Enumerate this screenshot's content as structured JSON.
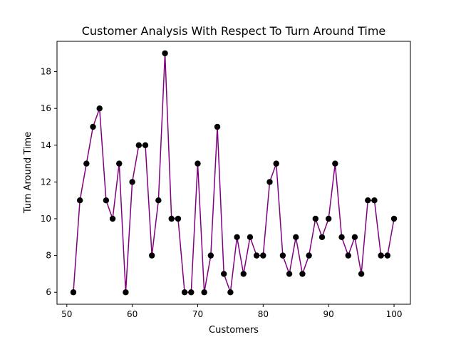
{
  "chart_data": {
    "type": "line",
    "title": "Customer Analysis With Respect To Turn Around Time",
    "xlabel": "Customers",
    "ylabel": "Turn Around Time",
    "xlim": [
      48.5,
      102.5
    ],
    "ylim": [
      5.35,
      19.65
    ],
    "xticks": [
      50,
      60,
      70,
      80,
      90,
      100
    ],
    "yticks": [
      6,
      8,
      10,
      12,
      14,
      16,
      18
    ],
    "grid": false,
    "legend": "none",
    "line_color": "#800080",
    "marker_color": "#000000",
    "series": [
      {
        "x": [
          51,
          52,
          53,
          54,
          55,
          56,
          57,
          58,
          59,
          60,
          61,
          62,
          63,
          64,
          65,
          66,
          67,
          68,
          69,
          70,
          71,
          72,
          73,
          74,
          75,
          76,
          77,
          78,
          79,
          80,
          81,
          82,
          83,
          84,
          85,
          86,
          87,
          88,
          89,
          90,
          91,
          92,
          93,
          94,
          95,
          96,
          97,
          98,
          99,
          100
        ],
        "values": [
          6,
          11,
          13,
          15,
          16,
          11,
          10,
          13,
          6,
          12,
          14,
          14,
          8,
          11,
          19,
          10,
          10,
          6,
          6,
          13,
          6,
          8,
          15,
          7,
          6,
          9,
          7,
          9,
          8,
          8,
          12,
          13,
          8,
          7,
          9,
          7,
          8,
          10,
          9,
          10,
          13,
          9,
          8,
          9,
          7,
          11,
          11,
          8,
          8,
          10
        ]
      }
    ]
  }
}
